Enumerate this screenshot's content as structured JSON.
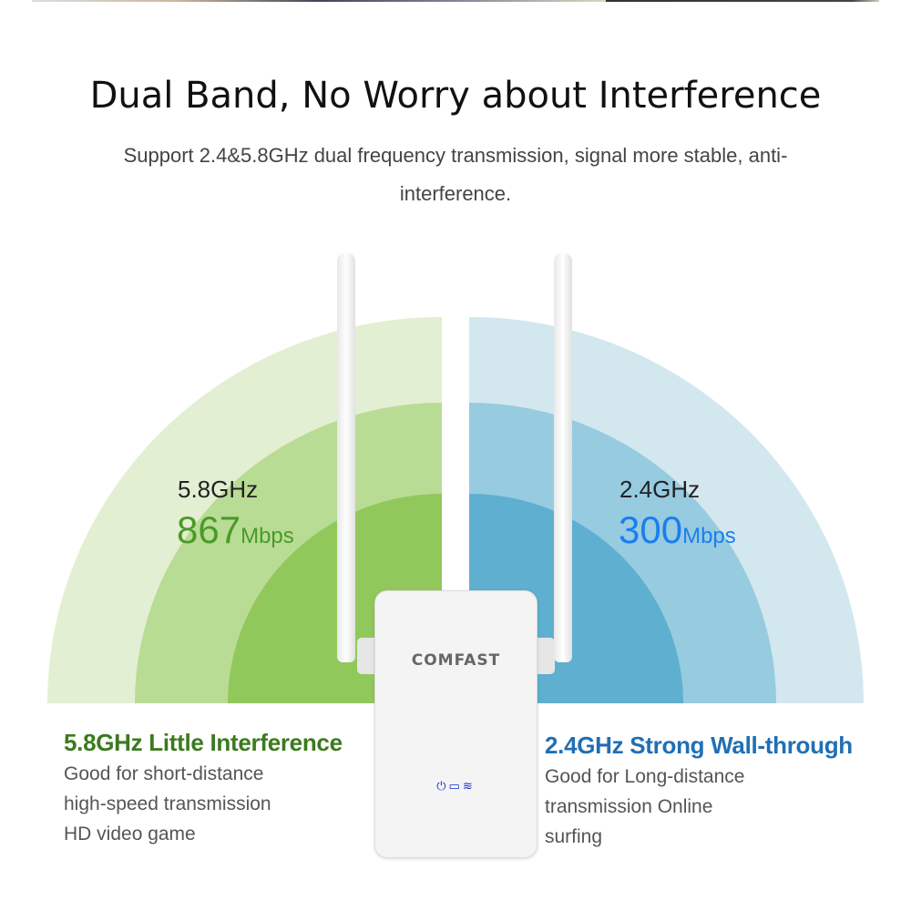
{
  "title": "Dual Band, No Worry about Interference",
  "subtitle": "Support 2.4&5.8GHz dual frequency transmission, signal more stable, anti-interference.",
  "left": {
    "band": "5.8GHz",
    "speed": "867",
    "unit": "Mbps",
    "heading": "5.8GHz Little Interference",
    "lines": [
      "Good for short-distance",
      "high-speed transmission",
      "HD video game"
    ],
    "colors": {
      "outer": "#e3efd2",
      "middle": "#b9dc95",
      "inner": "#91c85b",
      "text": "#4a9a28",
      "heading": "#3c7a1e"
    }
  },
  "right": {
    "band": "2.4GHz",
    "speed": "300",
    "unit": "Mbps",
    "heading": "2.4GHz Strong Wall-through",
    "lines": [
      "Good for Long-distance",
      "transmission Online",
      "surfing"
    ],
    "colors": {
      "outer": "#d3e7ef",
      "middle": "#97cbe0",
      "inner": "#5eafd0",
      "text": "#1a7ef0",
      "heading": "#1f6fb5"
    }
  },
  "device": {
    "brand": "COMFAST",
    "indicators": [
      "power-icon",
      "lan-icon",
      "wifi-icon"
    ]
  }
}
